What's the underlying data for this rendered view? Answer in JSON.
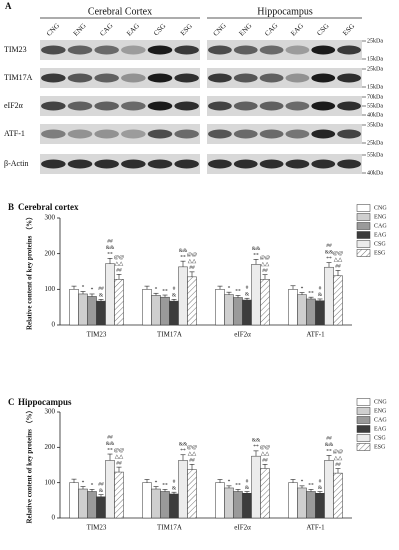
{
  "blot": {
    "panel": "A",
    "regions": [
      "Cerebral Cortex",
      "Hippocampus"
    ],
    "lanes": [
      "CNG",
      "ENG",
      "CAG",
      "EAG",
      "CSG",
      "ESG"
    ],
    "rows": [
      "TIM23",
      "TIM17A",
      "eIF2α",
      "ATF-1",
      "β-Actin"
    ],
    "markers": [
      [
        "25kDa",
        "15kDa"
      ],
      [
        "25kDa",
        "15kDa"
      ],
      [
        "70kDa",
        "55kDa",
        "40kDa"
      ],
      [
        "35kDa",
        "25kDa"
      ],
      [
        "55kDa",
        "40kDa"
      ]
    ]
  },
  "chart_data": [
    {
      "type": "bar",
      "panel": "B",
      "title": "Cerebral cortex",
      "y_label": "Relative content of key proteins （%）",
      "categories": [
        "TIM23",
        "TIM17A",
        "eIF2α",
        "ATF-1"
      ],
      "ylim": [
        0,
        300
      ],
      "yticks": [
        0,
        100,
        200,
        300
      ],
      "legend": "upper right",
      "series": [
        {
          "name": "CNG",
          "color": "#ffffff",
          "values": [
            100,
            100,
            100,
            100
          ],
          "errors": [
            9,
            9,
            9,
            10
          ]
        },
        {
          "name": "ENG",
          "color": "#cfcfcf",
          "values": [
            87,
            83,
            85,
            85
          ],
          "errors": [
            7,
            6,
            7,
            6
          ],
          "annotations": [
            [
              "*"
            ],
            [
              "*"
            ],
            [
              "*"
            ],
            [
              "*"
            ]
          ]
        },
        {
          "name": "CAG",
          "color": "#9a9a9a",
          "values": [
            80,
            78,
            77,
            73
          ],
          "errors": [
            7,
            6,
            6,
            5
          ],
          "annotations": [
            [
              "*"
            ],
            [
              "**"
            ],
            [
              "**"
            ],
            [
              "**"
            ]
          ]
        },
        {
          "name": "EAG",
          "color": "#3c3c3c",
          "values": [
            67,
            67,
            70,
            68
          ],
          "errors": [
            5,
            5,
            5,
            5
          ],
          "annotations": [
            [
              "&",
              "##"
            ],
            [
              "&",
              "#"
            ],
            [
              "&",
              "#"
            ],
            [
              "&",
              "#"
            ]
          ]
        },
        {
          "name": "CSG",
          "color": "#ececec",
          "values": [
            172,
            163,
            170,
            162
          ],
          "errors": [
            15,
            16,
            14,
            13
          ],
          "annotations": [
            [
              "**",
              "&&",
              "##"
            ],
            [
              "**",
              "&&"
            ],
            [
              "**",
              "&&"
            ],
            [
              "**",
              "&&",
              "##"
            ]
          ]
        },
        {
          "name": "ESG",
          "color": "#ffffff",
          "hatch": true,
          "values": [
            128,
            135,
            128,
            138
          ],
          "errors": [
            14,
            14,
            13,
            15
          ],
          "annotations": [
            [
              "##",
              "△△",
              "@@"
            ],
            [
              "##",
              "△△",
              "@@"
            ],
            [
              "##",
              "△△",
              "@@"
            ],
            [
              "##",
              "△△",
              "@@"
            ]
          ]
        }
      ]
    },
    {
      "type": "bar",
      "panel": "C",
      "title": "Hippocampus",
      "y_label": "Relative content of key proteins （%）",
      "categories": [
        "TIM23",
        "TIM17A",
        "eIF2α",
        "ATF-1"
      ],
      "ylim": [
        0,
        300
      ],
      "yticks": [
        0,
        100,
        200,
        300
      ],
      "legend": "upper right",
      "series": [
        {
          "name": "CNG",
          "color": "#ffffff",
          "values": [
            100,
            100,
            100,
            100
          ],
          "errors": [
            10,
            9,
            9,
            9
          ]
        },
        {
          "name": "ENG",
          "color": "#cfcfcf",
          "values": [
            82,
            82,
            85,
            85
          ],
          "errors": [
            7,
            7,
            6,
            6
          ],
          "annotations": [
            [
              "*"
            ],
            [
              "*"
            ],
            [
              "*"
            ],
            [
              "*"
            ]
          ]
        },
        {
          "name": "CAG",
          "color": "#9a9a9a",
          "values": [
            75,
            75,
            75,
            75
          ],
          "errors": [
            6,
            6,
            6,
            6
          ],
          "annotations": [
            [
              "*"
            ],
            [
              "**"
            ],
            [
              "**"
            ],
            [
              "**"
            ]
          ]
        },
        {
          "name": "EAG",
          "color": "#3c3c3c",
          "values": [
            60,
            68,
            70,
            70
          ],
          "errors": [
            6,
            5,
            5,
            5
          ],
          "annotations": [
            [
              "&",
              "##"
            ],
            [
              "&",
              "#"
            ],
            [
              "&",
              "#"
            ],
            [
              "&",
              "#"
            ]
          ]
        },
        {
          "name": "CSG",
          "color": "#ececec",
          "values": [
            163,
            163,
            175,
            163
          ],
          "errors": [
            18,
            16,
            15,
            14
          ],
          "annotations": [
            [
              "**",
              "&&",
              "##"
            ],
            [
              "**",
              "&&"
            ],
            [
              "**",
              "&&"
            ],
            [
              "**",
              "&&",
              "##"
            ]
          ]
        },
        {
          "name": "ESG",
          "color": "#ffffff",
          "hatch": true,
          "values": [
            130,
            137,
            140,
            127
          ],
          "errors": [
            14,
            15,
            12,
            13
          ],
          "annotations": [
            [
              "##",
              "△△",
              "@@"
            ],
            [
              "##",
              "△△",
              "@@"
            ],
            [
              "##",
              "△△",
              "@@"
            ],
            [
              "##",
              "△△",
              "@@"
            ]
          ]
        }
      ]
    }
  ]
}
